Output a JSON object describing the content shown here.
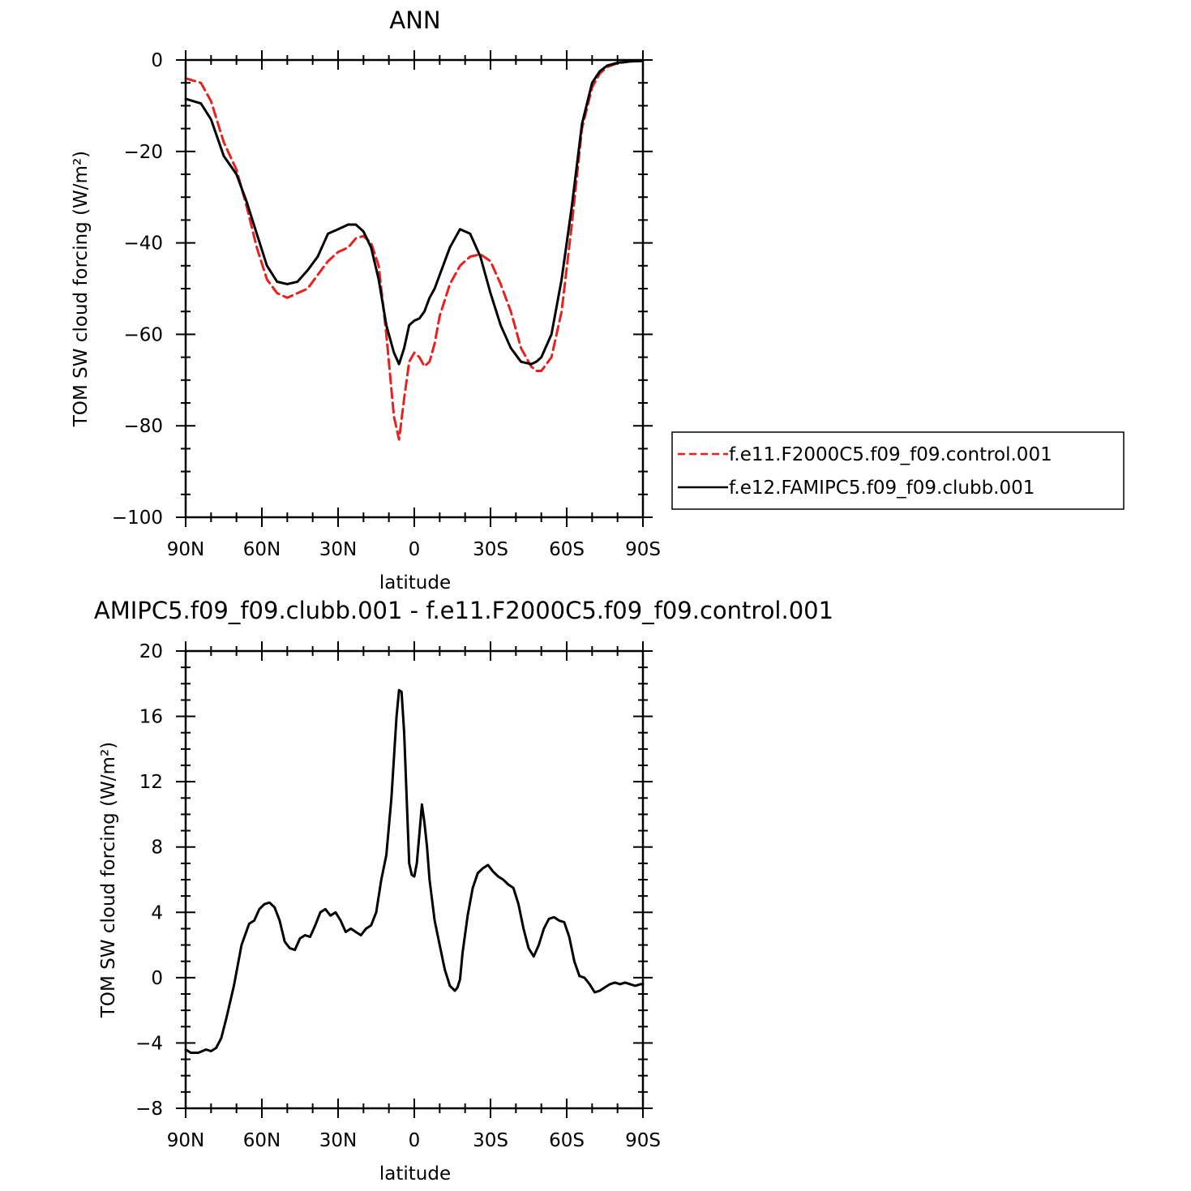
{
  "chart_data": [
    {
      "type": "line",
      "title": "ANN",
      "xlabel": "latitude",
      "ylabel": "TOM SW cloud forcing (W/m²)",
      "xlim": [
        90,
        -90
      ],
      "ylim": [
        -100,
        0
      ],
      "x_ticks": [
        {
          "value": 90,
          "label": "90N"
        },
        {
          "value": 60,
          "label": "60N"
        },
        {
          "value": 30,
          "label": "30N"
        },
        {
          "value": 0,
          "label": "0"
        },
        {
          "value": -30,
          "label": "30S"
        },
        {
          "value": -60,
          "label": "60S"
        },
        {
          "value": -90,
          "label": "90S"
        }
      ],
      "y_ticks": [
        {
          "value": 0,
          "label": "0"
        },
        {
          "value": -20,
          "label": "−20"
        },
        {
          "value": -40,
          "label": "−40"
        },
        {
          "value": -60,
          "label": "−60"
        },
        {
          "value": -80,
          "label": "−80"
        },
        {
          "value": -100,
          "label": "−100"
        }
      ],
      "legend": {
        "placement": "right"
      },
      "series": [
        {
          "name": "f.e11.F2000C5.f09_f09.control.001",
          "color": "#e8211f",
          "dash": "dashed",
          "x": [
            90,
            84,
            80,
            75,
            70,
            66,
            62,
            58,
            54,
            50,
            46,
            42,
            38,
            34,
            30,
            26,
            23,
            20,
            17,
            14,
            11,
            8,
            6,
            4,
            2,
            0,
            -2,
            -4,
            -6,
            -8,
            -10,
            -14,
            -18,
            -22,
            -26,
            -30,
            -34,
            -38,
            -42,
            -46,
            -48,
            -50,
            -54,
            -58,
            -62,
            -66,
            -70,
            -73,
            -76,
            -80,
            -85,
            -90
          ],
          "y": [
            -4,
            -5,
            -9,
            -18,
            -24,
            -32,
            -41,
            -48,
            -51,
            -52,
            -51,
            -50,
            -47,
            -44,
            -42,
            -41,
            -39,
            -38.5,
            -40,
            -45,
            -60,
            -78,
            -83,
            -74,
            -66,
            -64,
            -65,
            -67,
            -66,
            -62,
            -56,
            -49,
            -45,
            -43,
            -42.5,
            -44,
            -49,
            -55,
            -63,
            -67,
            -68,
            -68,
            -65,
            -55,
            -36,
            -15,
            -6,
            -3,
            -1.5,
            -0.7,
            -0.3,
            -0.2
          ]
        },
        {
          "name": "f.e12.FAMIPC5.f09_f09.clubb.001",
          "color": "#000000",
          "dash": "solid",
          "x": [
            90,
            84,
            80,
            75,
            70,
            66,
            62,
            58,
            54,
            50,
            46,
            42,
            38,
            34,
            30,
            26,
            23,
            20,
            17,
            14,
            11,
            8,
            6,
            4,
            2,
            0,
            -2,
            -4,
            -6,
            -8,
            -10,
            -14,
            -18,
            -22,
            -26,
            -30,
            -34,
            -38,
            -42,
            -46,
            -48,
            -50,
            -54,
            -58,
            -62,
            -66,
            -70,
            -73,
            -76,
            -80,
            -85,
            -90
          ],
          "y": [
            -8.5,
            -9.5,
            -13,
            -21,
            -25,
            -31,
            -38,
            -45,
            -48.5,
            -49,
            -48.5,
            -46,
            -43,
            -38,
            -37,
            -36,
            -36,
            -37.5,
            -41,
            -48,
            -58,
            -64,
            -66.5,
            -63,
            -58,
            -57,
            -56.5,
            -55,
            -52,
            -50,
            -47,
            -41,
            -37,
            -38,
            -43,
            -51,
            -58,
            -63,
            -66,
            -66.5,
            -66,
            -65,
            -60,
            -48,
            -32,
            -14,
            -5,
            -2.5,
            -1.2,
            -0.6,
            -0.3,
            -0.2
          ]
        }
      ]
    },
    {
      "type": "line",
      "title": "AMIPC5.f09_f09.clubb.001 - f.e11.F2000C5.f09_f09.control.001",
      "xlabel": "latitude",
      "ylabel": "TOM SW cloud forcing (W/m²)",
      "xlim": [
        90,
        -90
      ],
      "ylim": [
        -8,
        20
      ],
      "x_ticks": [
        {
          "value": 90,
          "label": "90N"
        },
        {
          "value": 60,
          "label": "60N"
        },
        {
          "value": 30,
          "label": "30N"
        },
        {
          "value": 0,
          "label": "0"
        },
        {
          "value": -30,
          "label": "30S"
        },
        {
          "value": -60,
          "label": "60S"
        },
        {
          "value": -90,
          "label": "90S"
        }
      ],
      "y_ticks": [
        {
          "value": 20,
          "label": "20"
        },
        {
          "value": 16,
          "label": "16"
        },
        {
          "value": 12,
          "label": "12"
        },
        {
          "value": 8,
          "label": "8"
        },
        {
          "value": 4,
          "label": "4"
        },
        {
          "value": 0,
          "label": "0"
        },
        {
          "value": -4,
          "label": "−4"
        },
        {
          "value": -8,
          "label": "−8"
        }
      ],
      "series": [
        {
          "color": "#000000",
          "dash": "solid",
          "x": [
            90,
            88,
            85,
            82,
            80,
            78,
            76,
            74,
            71,
            68,
            65,
            63,
            61,
            59,
            57,
            55,
            53,
            51,
            49,
            47,
            45,
            43,
            41,
            39,
            37,
            35,
            33,
            31,
            29,
            27,
            25,
            23,
            21,
            19,
            17,
            15,
            13,
            11,
            9,
            7,
            6,
            5,
            4,
            3,
            2,
            1,
            0,
            -1,
            -2,
            -3,
            -4,
            -5,
            -6,
            -8,
            -10,
            -12,
            -14,
            -16,
            -17,
            -18,
            -19,
            -21,
            -23,
            -25,
            -27,
            -29,
            -31,
            -33,
            -35,
            -37,
            -39,
            -41,
            -43,
            -45,
            -47,
            -49,
            -51,
            -53,
            -55,
            -57,
            -59,
            -61,
            -63,
            -65,
            -67,
            -69,
            -71,
            -73,
            -75,
            -77,
            -79,
            -81,
            -83,
            -85,
            -87,
            -89,
            -90
          ],
          "y": [
            -4.4,
            -4.6,
            -4.6,
            -4.4,
            -4.5,
            -4.3,
            -3.7,
            -2.5,
            -0.5,
            2,
            3.3,
            3.5,
            4.2,
            4.5,
            4.6,
            4.3,
            3.5,
            2.2,
            1.8,
            1.7,
            2.4,
            2.6,
            2.5,
            3.2,
            4,
            4.2,
            3.8,
            4,
            3.5,
            2.8,
            3,
            2.8,
            2.6,
            3,
            3.2,
            4,
            6,
            7.5,
            11,
            16,
            17.6,
            17.5,
            15,
            11,
            7,
            6.3,
            6.2,
            7,
            8.8,
            10.6,
            9.5,
            8,
            6,
            3.5,
            2,
            0.5,
            -0.5,
            -0.8,
            -0.6,
            -0.1,
            1.5,
            3.8,
            5.5,
            6.4,
            6.7,
            6.9,
            6.5,
            6.2,
            6,
            5.7,
            5.5,
            4.5,
            3,
            1.8,
            1.3,
            2,
            3,
            3.6,
            3.7,
            3.5,
            3.4,
            2.5,
            1,
            0.1,
            0,
            -0.4,
            -0.9,
            -0.8,
            -0.6,
            -0.4,
            -0.3,
            -0.4,
            -0.3,
            -0.4,
            -0.5,
            -0.4,
            -0.4
          ]
        }
      ]
    }
  ]
}
